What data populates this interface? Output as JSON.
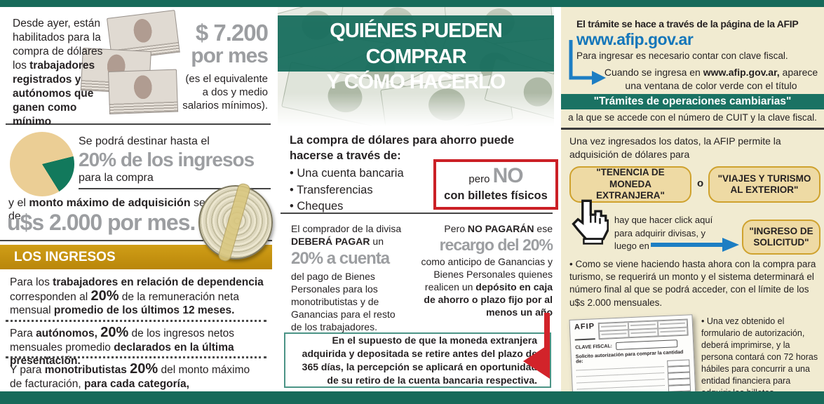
{
  "colors": {
    "teal_green": "#176a5a",
    "banner_green": "#1a7263",
    "beige": "#f1ebd1",
    "gold": "#c6940f",
    "gray_big": "#9c9ea1",
    "dark_text": "#262223",
    "blue_link": "#1476ba",
    "arrow_blue": "#1d7ec3",
    "red": "#cb2026",
    "teal_box_border": "#4b9486",
    "button_tan": "#eedaa4",
    "button_border": "#cfa22e"
  },
  "pie": {
    "type": "pie",
    "green_percent": 20,
    "tan_percent": 80,
    "green_color": "#12795c",
    "tan_color": "#ebce95"
  },
  "left": {
    "intro": [
      {
        "t": "Desde ayer, están habilitados para la compra de dólares los "
      },
      {
        "t": "trabajadores registrados y autónomos que ganen como mínimo",
        "c": "b"
      }
    ],
    "salary": {
      "line1": "$ 7.200",
      "line2": "por mes",
      "note": [
        "(es el equivalente",
        "a dos y medio",
        "salarios mínimos)."
      ]
    },
    "destino": {
      "pre": "Se podrá destinar hasta el",
      "big": "20% de los ingresos",
      "post": "para la compra"
    },
    "monto": {
      "line": [
        {
          "t": "y el "
        },
        {
          "t": "monto máximo de adquisición",
          "c": "b"
        },
        {
          "t": " será de"
        }
      ],
      "big": "u$s 2.000 por mes."
    },
    "ingresos_header": "LOS INGRESOS",
    "ingresos": [
      [
        {
          "t": "Para los "
        },
        {
          "t": "trabajadores en relación de dependencia",
          "c": "b"
        },
        {
          "t": " corresponden al "
        },
        {
          "t": "20%",
          "c": "bl"
        },
        {
          "t": " de la remuneración neta mensual "
        },
        {
          "t": "promedio de los últimos 12 meses.",
          "c": "b"
        }
      ],
      [
        {
          "t": "Para "
        },
        {
          "t": "autónomos, ",
          "c": "b"
        },
        {
          "t": "20%",
          "c": "bl"
        },
        {
          "t": " de los ingresos netos mensuales promedio "
        },
        {
          "t": "declarados en la última presentación.",
          "c": "b"
        }
      ],
      [
        {
          "t": "Y para "
        },
        {
          "t": "monotributistas ",
          "c": "b"
        },
        {
          "t": "20%",
          "c": "bl"
        },
        {
          "t": " del monto máximo de facturación, "
        },
        {
          "t": "para cada categoría, mensualizado.",
          "c": "b"
        }
      ]
    ]
  },
  "middle": {
    "banner": [
      "QUIÉNES PUEDEN COMPRAR",
      "Y CÓMO HACERLO"
    ],
    "compra_head": "La compra de dólares para ahorro puede hacerse a través de:",
    "bullets": [
      "Una cuenta bancaria",
      "Transferencias",
      "Cheques"
    ],
    "no_box": {
      "pre": "pero ",
      "big": "NO",
      "line2": "con billetes físicos"
    },
    "payer": {
      "l1": [
        {
          "t": "El comprador de la divisa "
        },
        {
          "t": "DEBERÁ PAGAR",
          "c": "b"
        },
        {
          "t": " un"
        }
      ],
      "big": "20% a cuenta",
      "l2": "del pago de Bienes Personales para los monotributistas y de Ganancias para el resto de los trabajadores."
    },
    "nopayer": {
      "l1": [
        {
          "t": "Pero "
        },
        {
          "t": "NO PAGARÁN",
          "c": "b"
        },
        {
          "t": " ese"
        }
      ],
      "big": "recargo del 20%",
      "l2": [
        {
          "t": "como anticipo de Ganancias y Bienes Personales quienes realicen un "
        },
        {
          "t": "depósito en caja de ahorro o plazo fijo por al menos un año",
          "c": "b"
        }
      ]
    },
    "warning": "En el supuesto de que la moneda extranjera adquirida y depositada se retire antes del plazo de 365 días, la percepción se aplicará en oportunidad de su retiro de la cuenta bancaria respectiva."
  },
  "right": {
    "title": "El trámite se hace a través de la página de la AFIP",
    "url": "www.afip.gov.ar",
    "clave": "Para ingresar es necesario contar con clave fiscal.",
    "cuando": [
      {
        "t": "Cuando se ingresa en "
      },
      {
        "t": "www.afip.gov.ar,",
        "c": "b"
      },
      {
        "t": " aparece una ventana de color verde con el título"
      }
    ],
    "banner": "\"Trámites de operaciones cambiarias\"",
    "acceso": "a la que se accede con el número de CUIT y la clave fiscal.",
    "datos": "Una vez ingresados los datos, la AFIP permite la adquisición de dólares para",
    "option1": "\"TENENCIA DE MONEDA EXTRANJERA\"",
    "or": "o",
    "option2": "\"VIAJES Y TURISMO AL EXTERIOR\"",
    "click": "hay que hacer click aquí para adquirir divisas, y luego en",
    "option3": "\"INGRESO DE SOLICITUD\"",
    "bullet1": "Como se viene haciendo hasta ahora con la compra para turismo, se requerirá un monto y el sistema determinará el número final al que se podrá acceder, con el límite de los u$s 2.000 mensuales.",
    "bullet2": "Una vez obtenido el formulario de autorización, deberá imprimirse, y la persona contará con 72 horas hábiles para concurrir a una entidad financiera para adquirir los billetes.",
    "form": {
      "logo": "AFIP",
      "clave_label": "CLAVE FISCAL:",
      "solicito": "Solicito autorización para comprar la cantidad de:"
    }
  }
}
